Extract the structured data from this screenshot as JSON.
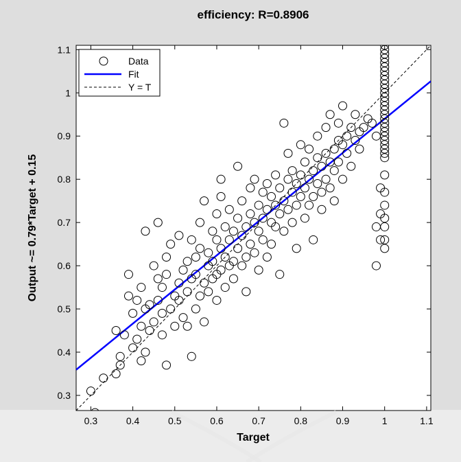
{
  "chart_data": {
    "type": "scatter",
    "title": "efficiency: R=0.8906",
    "xlabel": "Target",
    "ylabel": "Output ~= 0.79*Target + 0.15",
    "xlim": [
      0.265,
      1.11
    ],
    "ylim": [
      0.265,
      1.11
    ],
    "xticks": [
      "0.3",
      "0.4",
      "0.5",
      "0.6",
      "0.7",
      "0.8",
      "0.9",
      "1",
      "1.1"
    ],
    "yticks": [
      "0.3",
      "0.4",
      "0.5",
      "0.6",
      "0.7",
      "0.8",
      "0.9",
      "1",
      "1.1"
    ],
    "grid": false,
    "legend": {
      "placement": "top-left",
      "entries": [
        {
          "label": "Data",
          "marker": "circle",
          "color": "#000000"
        },
        {
          "label": "Fit",
          "line": "solid",
          "color": "#0000ff"
        },
        {
          "label": "Y = T",
          "line": "dashed",
          "color": "#000000"
        }
      ]
    },
    "fit": {
      "slope": 0.79,
      "intercept": 0.15
    },
    "identity_line": {
      "from": [
        0.265,
        0.265
      ],
      "to": [
        1.11,
        1.11
      ]
    },
    "series": [
      {
        "name": "Data",
        "points": [
          [
            0.3,
            0.31
          ],
          [
            0.31,
            0.26
          ],
          [
            0.33,
            0.34
          ],
          [
            0.36,
            0.35
          ],
          [
            0.37,
            0.39
          ],
          [
            0.36,
            0.45
          ],
          [
            0.37,
            0.37
          ],
          [
            0.38,
            0.44
          ],
          [
            0.39,
            0.53
          ],
          [
            0.39,
            0.58
          ],
          [
            0.4,
            0.41
          ],
          [
            0.4,
            0.49
          ],
          [
            0.41,
            0.43
          ],
          [
            0.41,
            0.52
          ],
          [
            0.42,
            0.38
          ],
          [
            0.42,
            0.55
          ],
          [
            0.42,
            0.46
          ],
          [
            0.43,
            0.68
          ],
          [
            0.43,
            0.5
          ],
          [
            0.43,
            0.4
          ],
          [
            0.44,
            0.51
          ],
          [
            0.44,
            0.45
          ],
          [
            0.45,
            0.6
          ],
          [
            0.45,
            0.47
          ],
          [
            0.46,
            0.52
          ],
          [
            0.46,
            0.57
          ],
          [
            0.46,
            0.7
          ],
          [
            0.47,
            0.44
          ],
          [
            0.47,
            0.55
          ],
          [
            0.47,
            0.49
          ],
          [
            0.48,
            0.62
          ],
          [
            0.48,
            0.58
          ],
          [
            0.48,
            0.37
          ],
          [
            0.49,
            0.5
          ],
          [
            0.49,
            0.65
          ],
          [
            0.5,
            0.53
          ],
          [
            0.5,
            0.46
          ],
          [
            0.51,
            0.56
          ],
          [
            0.51,
            0.67
          ],
          [
            0.51,
            0.52
          ],
          [
            0.52,
            0.59
          ],
          [
            0.52,
            0.48
          ],
          [
            0.53,
            0.61
          ],
          [
            0.53,
            0.54
          ],
          [
            0.53,
            0.46
          ],
          [
            0.54,
            0.39
          ],
          [
            0.54,
            0.57
          ],
          [
            0.54,
            0.66
          ],
          [
            0.55,
            0.5
          ],
          [
            0.55,
            0.62
          ],
          [
            0.55,
            0.58
          ],
          [
            0.56,
            0.53
          ],
          [
            0.56,
            0.7
          ],
          [
            0.56,
            0.64
          ],
          [
            0.57,
            0.56
          ],
          [
            0.57,
            0.47
          ],
          [
            0.57,
            0.75
          ],
          [
            0.58,
            0.6
          ],
          [
            0.58,
            0.63
          ],
          [
            0.58,
            0.54
          ],
          [
            0.59,
            0.68
          ],
          [
            0.59,
            0.57
          ],
          [
            0.59,
            0.61
          ],
          [
            0.6,
            0.66
          ],
          [
            0.6,
            0.72
          ],
          [
            0.6,
            0.58
          ],
          [
            0.6,
            0.52
          ],
          [
            0.61,
            0.64
          ],
          [
            0.61,
            0.59
          ],
          [
            0.61,
            0.76
          ],
          [
            0.61,
            0.8
          ],
          [
            0.62,
            0.62
          ],
          [
            0.62,
            0.69
          ],
          [
            0.62,
            0.55
          ],
          [
            0.63,
            0.6
          ],
          [
            0.63,
            0.66
          ],
          [
            0.63,
            0.73
          ],
          [
            0.64,
            0.61
          ],
          [
            0.64,
            0.68
          ],
          [
            0.64,
            0.57
          ],
          [
            0.65,
            0.71
          ],
          [
            0.65,
            0.64
          ],
          [
            0.65,
            0.83
          ],
          [
            0.66,
            0.67
          ],
          [
            0.66,
            0.6
          ],
          [
            0.66,
            0.75
          ],
          [
            0.67,
            0.69
          ],
          [
            0.67,
            0.62
          ],
          [
            0.67,
            0.54
          ],
          [
            0.68,
            0.72
          ],
          [
            0.68,
            0.65
          ],
          [
            0.68,
            0.78
          ],
          [
            0.69,
            0.7
          ],
          [
            0.69,
            0.63
          ],
          [
            0.69,
            0.8
          ],
          [
            0.7,
            0.74
          ],
          [
            0.7,
            0.68
          ],
          [
            0.7,
            0.59
          ],
          [
            0.71,
            0.71
          ],
          [
            0.71,
            0.77
          ],
          [
            0.71,
            0.66
          ],
          [
            0.72,
            0.73
          ],
          [
            0.72,
            0.79
          ],
          [
            0.72,
            0.62
          ],
          [
            0.73,
            0.7
          ],
          [
            0.73,
            0.76
          ],
          [
            0.73,
            0.65
          ],
          [
            0.74,
            0.74
          ],
          [
            0.74,
            0.81
          ],
          [
            0.74,
            0.69
          ],
          [
            0.75,
            0.72
          ],
          [
            0.75,
            0.78
          ],
          [
            0.75,
            0.58
          ],
          [
            0.76,
            0.75
          ],
          [
            0.76,
            0.93
          ],
          [
            0.76,
            0.68
          ],
          [
            0.77,
            0.8
          ],
          [
            0.77,
            0.73
          ],
          [
            0.77,
            0.86
          ],
          [
            0.78,
            0.77
          ],
          [
            0.78,
            0.7
          ],
          [
            0.78,
            0.82
          ],
          [
            0.79,
            0.74
          ],
          [
            0.79,
            0.79
          ],
          [
            0.79,
            0.64
          ],
          [
            0.8,
            0.81
          ],
          [
            0.8,
            0.76
          ],
          [
            0.8,
            0.88
          ],
          [
            0.81,
            0.78
          ],
          [
            0.81,
            0.71
          ],
          [
            0.81,
            0.84
          ],
          [
            0.82,
            0.8
          ],
          [
            0.82,
            0.74
          ],
          [
            0.82,
            0.87
          ],
          [
            0.83,
            0.82
          ],
          [
            0.83,
            0.76
          ],
          [
            0.83,
            0.66
          ],
          [
            0.84,
            0.85
          ],
          [
            0.84,
            0.79
          ],
          [
            0.84,
            0.9
          ],
          [
            0.85,
            0.83
          ],
          [
            0.85,
            0.77
          ],
          [
            0.85,
            0.73
          ],
          [
            0.86,
            0.86
          ],
          [
            0.86,
            0.8
          ],
          [
            0.86,
            0.92
          ],
          [
            0.87,
            0.84
          ],
          [
            0.87,
            0.78
          ],
          [
            0.87,
            0.95
          ],
          [
            0.88,
            0.87
          ],
          [
            0.88,
            0.82
          ],
          [
            0.88,
            0.75
          ],
          [
            0.89,
            0.89
          ],
          [
            0.89,
            0.84
          ],
          [
            0.89,
            0.93
          ],
          [
            0.9,
            0.88
          ],
          [
            0.9,
            0.97
          ],
          [
            0.9,
            0.8
          ],
          [
            0.91,
            0.9
          ],
          [
            0.91,
            0.86
          ],
          [
            0.92,
            0.92
          ],
          [
            0.92,
            0.83
          ],
          [
            0.93,
            0.89
          ],
          [
            0.93,
            0.95
          ],
          [
            0.94,
            0.91
          ],
          [
            0.94,
            0.87
          ],
          [
            0.95,
            0.92
          ],
          [
            0.96,
            0.94
          ],
          [
            0.97,
            0.93
          ],
          [
            0.98,
            0.9
          ],
          [
            0.98,
            0.6
          ],
          [
            0.99,
            0.72
          ],
          [
            0.99,
            0.66
          ],
          [
            0.98,
            0.69
          ],
          [
            0.99,
            0.78
          ],
          [
            1.0,
            0.85
          ],
          [
            1.0,
            0.86
          ],
          [
            1.0,
            0.87
          ],
          [
            1.0,
            0.88
          ],
          [
            1.0,
            0.89
          ],
          [
            1.0,
            0.9
          ],
          [
            1.0,
            0.91
          ],
          [
            1.0,
            0.92
          ],
          [
            1.0,
            0.93
          ],
          [
            1.0,
            0.94
          ],
          [
            1.0,
            0.95
          ],
          [
            1.0,
            0.96
          ],
          [
            1.0,
            0.97
          ],
          [
            1.0,
            0.98
          ],
          [
            1.0,
            0.99
          ],
          [
            1.0,
            1.0
          ],
          [
            1.0,
            1.01
          ],
          [
            1.0,
            1.02
          ],
          [
            1.0,
            1.03
          ],
          [
            1.0,
            1.04
          ],
          [
            1.0,
            1.05
          ],
          [
            1.0,
            1.06
          ],
          [
            1.0,
            1.07
          ],
          [
            1.0,
            1.08
          ],
          [
            1.0,
            1.09
          ],
          [
            1.0,
            1.1
          ],
          [
            1.0,
            1.11
          ],
          [
            1.0,
            0.64
          ],
          [
            1.0,
            0.71
          ],
          [
            1.0,
            0.77
          ],
          [
            1.0,
            0.69
          ],
          [
            1.0,
            0.81
          ],
          [
            1.0,
            0.74
          ],
          [
            1.0,
            0.66
          ]
        ]
      }
    ]
  },
  "colors": {
    "figure_background": "#dedede",
    "axes_background": "#ffffff",
    "fit_line": "#0000ff",
    "identity_line": "#000000",
    "marker": "#000000"
  }
}
